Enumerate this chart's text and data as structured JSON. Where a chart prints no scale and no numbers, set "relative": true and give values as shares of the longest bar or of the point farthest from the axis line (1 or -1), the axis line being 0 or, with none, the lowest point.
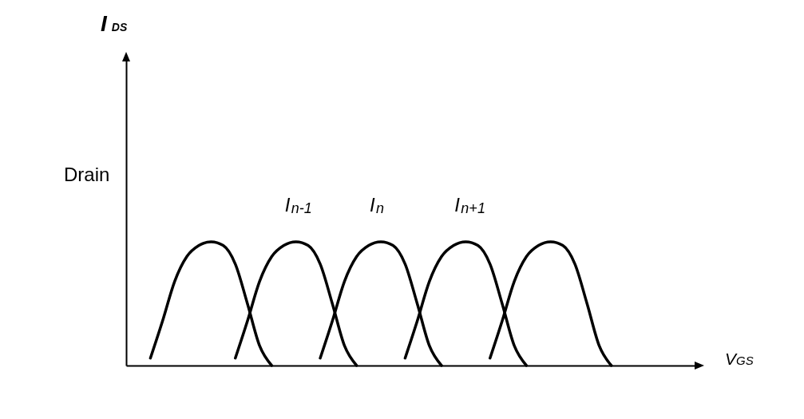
{
  "chart_data": {
    "type": "line",
    "relative": true,
    "xlabel": "V$_{GS}$",
    "annotations": [
      "I$_{DS}$",
      "Drain"
    ],
    "categories": [
      null,
      null,
      null,
      null,
      null,
      null,
      null,
      null,
      null,
      null,
      null,
      null,
      null,
      null,
      null,
      null,
      null,
      null,
      null,
      null,
      null,
      null,
      null,
      null,
      null,
      null,
      null,
      null,
      null,
      null,
      null,
      null,
      null,
      null,
      null,
      null,
      null,
      null,
      null,
      null,
      null,
      null,
      null,
      null,
      null,
      null,
      null,
      null
    ],
    "series": [
      {
        "color": "#000000",
        "values": [
          null,
          null,
          0.06,
          0.36,
          0.68,
          0.88,
          0.97,
          1,
          0.97,
          0.82,
          0.5,
          0.16,
          0,
          null,
          null,
          null,
          null,
          null,
          null,
          null,
          null,
          null,
          null,
          null,
          null,
          null,
          null,
          null,
          null,
          null,
          null,
          null,
          null,
          null,
          null,
          null,
          null,
          null,
          null,
          null,
          null,
          null,
          null,
          null,
          null,
          null,
          null,
          null
        ]
      },
      {
        "name": "I$_{n-1}$",
        "color": "#000000",
        "values": [
          null,
          null,
          null,
          null,
          null,
          null,
          null,
          null,
          null,
          0.06,
          0.36,
          0.68,
          0.88,
          0.97,
          1,
          0.97,
          0.82,
          0.5,
          0.16,
          0,
          null,
          null,
          null,
          null,
          null,
          null,
          null,
          null,
          null,
          null,
          null,
          null,
          null,
          null,
          null,
          null,
          null,
          null,
          null,
          null,
          null,
          null,
          null,
          null,
          null,
          null,
          null,
          null
        ]
      },
      {
        "name": "I$_{n}$",
        "color": "#000000",
        "values": [
          null,
          null,
          null,
          null,
          null,
          null,
          null,
          null,
          null,
          null,
          null,
          null,
          null,
          null,
          null,
          null,
          0.06,
          0.36,
          0.68,
          0.88,
          0.97,
          1,
          0.97,
          0.82,
          0.5,
          0.16,
          0,
          null,
          null,
          null,
          null,
          null,
          null,
          null,
          null,
          null,
          null,
          null,
          null,
          null,
          null,
          null,
          null,
          null,
          null,
          null,
          null,
          null
        ]
      },
      {
        "name": "I$_{n+1}$",
        "color": "#000000",
        "values": [
          null,
          null,
          null,
          null,
          null,
          null,
          null,
          null,
          null,
          null,
          null,
          null,
          null,
          null,
          null,
          null,
          null,
          null,
          null,
          null,
          null,
          null,
          null,
          0.06,
          0.36,
          0.68,
          0.88,
          0.97,
          1,
          0.97,
          0.82,
          0.5,
          0.16,
          0,
          null,
          null,
          null,
          null,
          null,
          null,
          null,
          null,
          null,
          null,
          null,
          null,
          null,
          null
        ]
      },
      {
        "color": "#000000",
        "values": [
          null,
          null,
          null,
          null,
          null,
          null,
          null,
          null,
          null,
          null,
          null,
          null,
          null,
          null,
          null,
          null,
          null,
          null,
          null,
          null,
          null,
          null,
          null,
          null,
          null,
          null,
          null,
          null,
          null,
          null,
          0.06,
          0.36,
          0.68,
          0.88,
          0.97,
          1,
          0.97,
          0.82,
          0.5,
          0.16,
          0,
          null,
          null,
          null,
          null,
          null,
          null,
          null
        ]
      }
    ]
  }
}
